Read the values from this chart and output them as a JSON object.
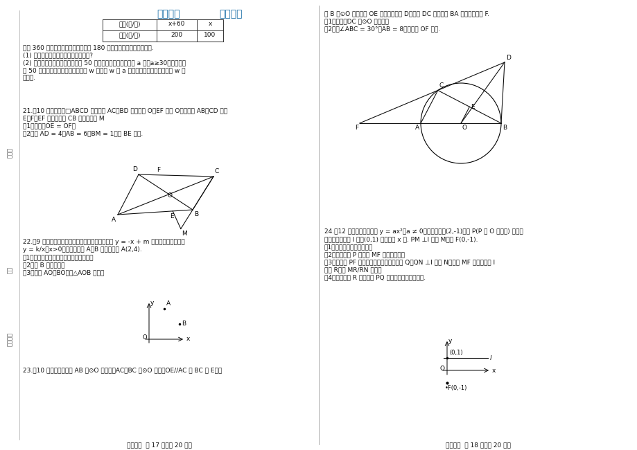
{
  "bg_color": "#ffffff",
  "footer_left": "数学试卷  第 17 页（共 20 页）",
  "footer_right": "数学试卷  第 18 页（共 20 页）",
  "table_headers": [
    "进价(元/件)",
    "x+60",
    "x"
  ],
  "table_row": [
    "售价(元/件)",
    "200",
    "100"
  ],
  "q20_text": [
    "若用 360 元购进甲种商品的件数与用 180 元购进乙种商品的件数相同.",
    "(1) 求甲、乙两种商品的进价是多少元?",
    "(2) 若超市销售甲、乙两种商品共 50 件，其中销售甲种商品为 a 件（a≥30），设销售",
    "完 50 件甲、乙两种商品的总利润为 w 元，求 w 与 a 之间的函数关系式，并求出 w 的",
    "最小值."
  ],
  "q21_text": [
    "21.（10 分）如图，□ABCD 的对角线 AC、BD 相交于点 O，EF 经过 O，分别交 AB、CD 于点",
    "E、F，EF 的延长线交 CB 的延长线于 M",
    "（1）求证：OE = OF；",
    "（2）若 AD = 4，AB = 6，BM = 1，求 BE 的长."
  ],
  "q22_text": [
    "22.（9 分）如图，在平面直角坐标系中，一次函数 y = -x + m 的图象与反比例函数",
    "y = k/x（x>0）的图象交于 A、B 两点，已知 A(2,4).",
    "（1）求一次函数和反比例函数的解析式；",
    "（2）求 B 点的坐标；",
    "（3）连接 AO、BO，求△AOB 的面积"
  ],
  "q23_left_text": [
    "23.（10 分）如图，已知 AB 是⊙O 的直径，AC、BC 是⊙O 的弦，OE//AC 交 BC 于 E，过"
  ],
  "q23_right_text": [
    "点 B 作⊙O 的切线交 OE 的延长线于点 D，连接 DC 并延长交 BA 的延长线于点 F.",
    "（1）求证：DC 是⊙O 的切线；",
    "（2）若∠ABC = 30°，AB = 8，求线段 OF 的长."
  ],
  "q24_text": [
    "24.（12 分）已知二次函数 y = ax²（a ≠ 0）的图象过点(2,-1)，点 P(P 与 O 不重合) 是图象",
    "上的一点，直线 l 过点(0,1) 且平行于 x 轴. PM ⊥l 于点 M，点 F(0,-1).",
    "（1）求二次函数的解析式；",
    "（2）求证：点 P 在线段 MF 的中垂线上；",
    "（3）设直线 PF 交二次函数的图象于另一点 Q，QN ⊥l 于点 N，线段 MF 的中垂线交 l",
    "于点 R，求 MR/RN 的值；",
    "（4）试判断点 R 与以线段 PQ 为直径的圆的位置关系."
  ]
}
